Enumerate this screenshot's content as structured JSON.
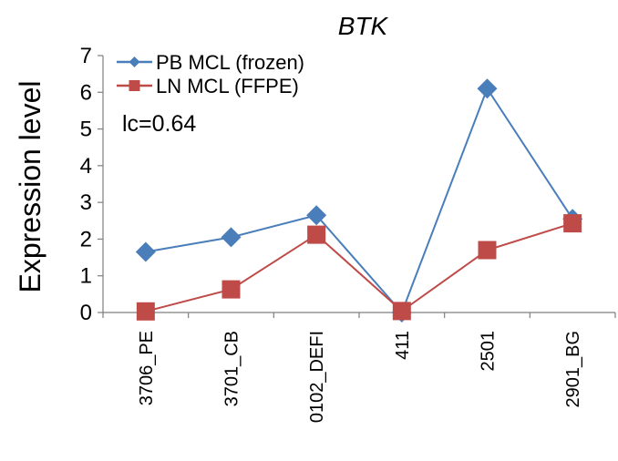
{
  "chart_data": {
    "type": "line",
    "title": "BTK",
    "xlabel": "",
    "ylabel": "Expression level",
    "categories": [
      "3706_PE",
      "3701_CB",
      "0102_DEFI",
      "411",
      "2501",
      "2901_BG"
    ],
    "ylim": [
      0,
      7
    ],
    "yticks": [
      "0",
      "1",
      "2",
      "3",
      "4",
      "5",
      "6",
      "7"
    ],
    "grid": false,
    "legend_position": "top-left",
    "annotation": "lc=0.64",
    "series": [
      {
        "name": "PB MCL (frozen)",
        "color": "#4a7ebb",
        "marker": "diamond",
        "values": [
          1.65,
          2.05,
          2.65,
          0.0,
          6.1,
          2.55
        ]
      },
      {
        "name": "LN MCL (FFPE)",
        "color": "#be4b48",
        "marker": "square",
        "values": [
          0.03,
          0.63,
          2.12,
          0.04,
          1.7,
          2.43
        ]
      }
    ]
  }
}
